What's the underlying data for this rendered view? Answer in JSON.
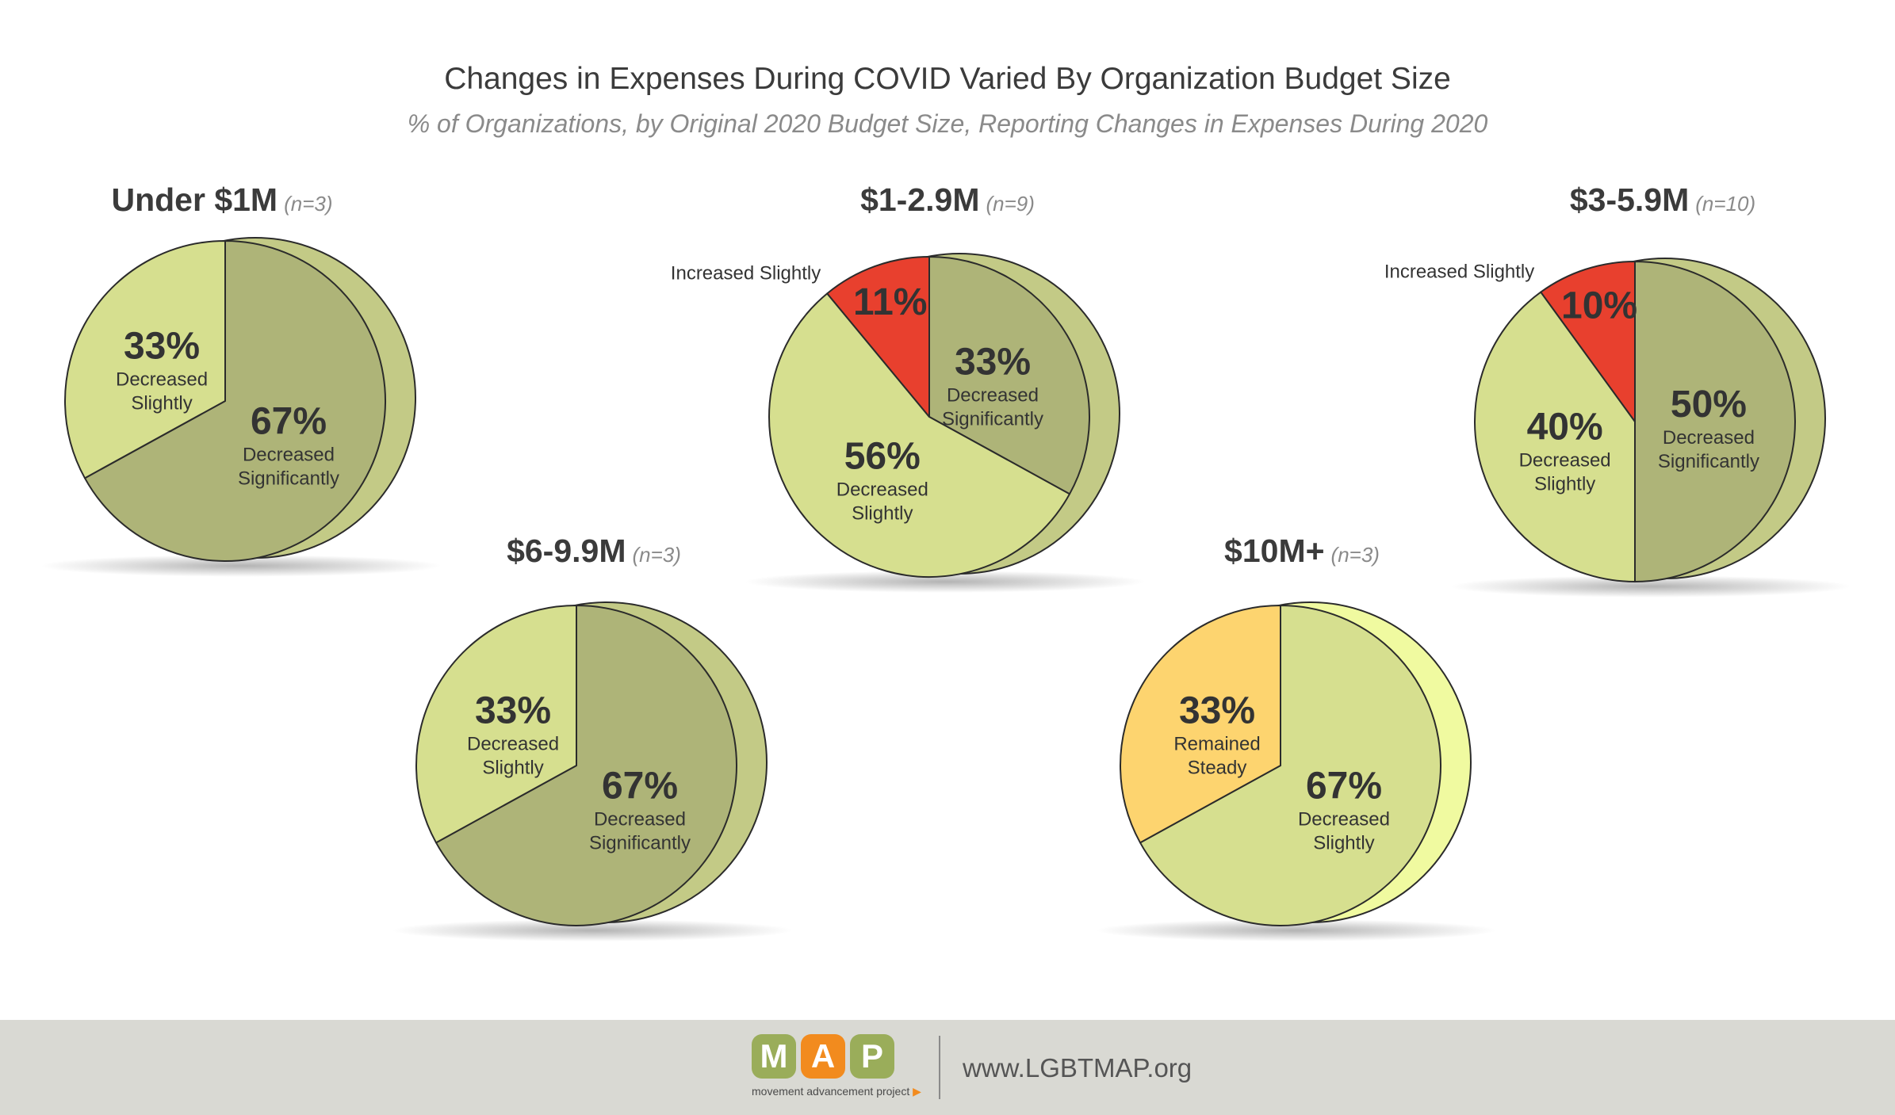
{
  "chart": {
    "title": "Changes in Expenses During COVID Varied By Organization Budget Size",
    "subtitle": "% of Organizations, by Original 2020 Budget Size, Reporting Changes in Expenses During 2020"
  },
  "colors": {
    "decreased_significantly": "#aeb478",
    "decreased_slightly": "#d6df8f",
    "increased_slightly": "#e8402e",
    "remained_steady": "#fdd46f",
    "footer_bg": "#d9d9d3"
  },
  "chart_data": [
    {
      "type": "pie",
      "category": "Under $1M",
      "n_label": "(n=3)",
      "slices": [
        {
          "label_lines": [
            "Decreased",
            "Significantly"
          ],
          "pct_label": "67%",
          "value": 67,
          "color": "#aeb478"
        },
        {
          "label_lines": [
            "Decreased",
            "Slightly"
          ],
          "pct_label": "33%",
          "value": 33,
          "color": "#d6df8f"
        }
      ]
    },
    {
      "type": "pie",
      "category": "$1-2.9M",
      "n_label": "(n=9)",
      "slices": [
        {
          "label_lines": [
            "Decreased",
            "Significantly"
          ],
          "pct_label": "33%",
          "value": 33,
          "color": "#aeb478"
        },
        {
          "label_lines": [
            "Decreased",
            "Slightly"
          ],
          "pct_label": "56%",
          "value": 56,
          "color": "#d6df8f"
        },
        {
          "label_lines": [
            "Increased Slightly"
          ],
          "pct_label": "11%",
          "value": 11,
          "color": "#e8402e",
          "label_outside": true
        }
      ]
    },
    {
      "type": "pie",
      "category": "$3-5.9M",
      "n_label": "(n=10)",
      "slices": [
        {
          "label_lines": [
            "Decreased",
            "Significantly"
          ],
          "pct_label": "50%",
          "value": 50,
          "color": "#aeb478"
        },
        {
          "label_lines": [
            "Decreased",
            "Slightly"
          ],
          "pct_label": "40%",
          "value": 40,
          "color": "#d6df8f"
        },
        {
          "label_lines": [
            "Increased Slightly"
          ],
          "pct_label": "10%",
          "value": 10,
          "color": "#e8402e",
          "label_outside": true
        }
      ]
    },
    {
      "type": "pie",
      "category": "$6-9.9M",
      "n_label": "(n=3)",
      "slices": [
        {
          "label_lines": [
            "Decreased",
            "Significantly"
          ],
          "pct_label": "67%",
          "value": 67,
          "color": "#aeb478"
        },
        {
          "label_lines": [
            "Decreased",
            "Slightly"
          ],
          "pct_label": "33%",
          "value": 33,
          "color": "#d6df8f"
        }
      ]
    },
    {
      "type": "pie",
      "category": "$10M+",
      "n_label": "(n=3)",
      "slices": [
        {
          "label_lines": [
            "Decreased",
            "Slightly"
          ],
          "pct_label": "67%",
          "value": 67,
          "color": "#d6df8f"
        },
        {
          "label_lines": [
            "Remained",
            "Steady"
          ],
          "pct_label": "33%",
          "value": 33,
          "color": "#fdd46f"
        }
      ]
    }
  ],
  "footer": {
    "logo_letters": [
      "M",
      "A",
      "P"
    ],
    "logo_colors": [
      "#9aad5a",
      "#f28b1e",
      "#9aad5a"
    ],
    "logo_tagline": "movement advancement project",
    "logo_arrow": "▶",
    "url": "www.LGBTMAP.org"
  }
}
